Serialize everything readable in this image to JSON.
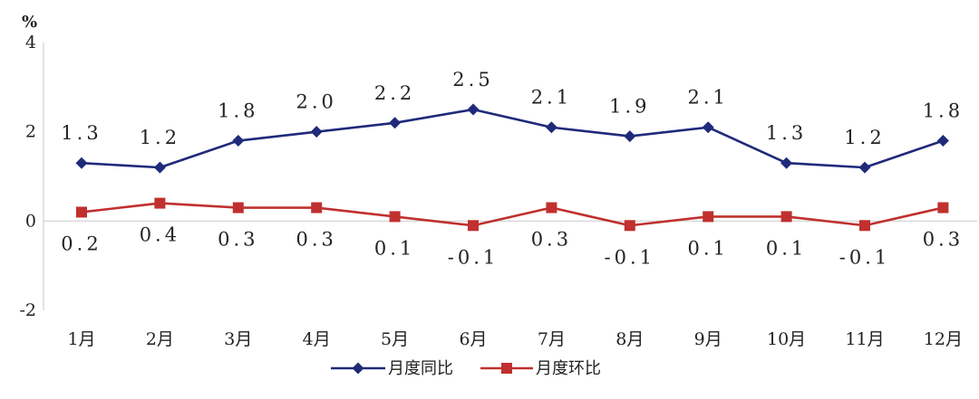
{
  "chart_data": {
    "type": "line",
    "title": "",
    "ylabel": "%",
    "xlabel": "",
    "ylim": [
      -2,
      4
    ],
    "yticks": [
      -2,
      0,
      2,
      4
    ],
    "ytick_labels": [
      "-2",
      "0",
      "2",
      "4"
    ],
    "categories": [
      "1月",
      "2月",
      "3月",
      "4月",
      "5月",
      "6月",
      "7月",
      "8月",
      "9月",
      "10月",
      "11月",
      "12月"
    ],
    "series": [
      {
        "name": "月度同比",
        "color": "#1f2a7a",
        "marker": "diamond",
        "values": [
          1.3,
          1.2,
          1.8,
          2.0,
          2.2,
          2.5,
          2.1,
          1.9,
          2.1,
          1.3,
          1.2,
          1.8
        ],
        "labels": [
          "1.3",
          "1.2",
          "1.8",
          "2.0",
          "2.2",
          "2.5",
          "2.1",
          "1.9",
          "2.1",
          "1.3",
          "1.2",
          "1.8"
        ],
        "label_position": "above"
      },
      {
        "name": "月度环比",
        "color": "#c0302e",
        "marker": "square",
        "values": [
          0.2,
          0.4,
          0.3,
          0.3,
          0.1,
          -0.1,
          0.3,
          -0.1,
          0.1,
          0.1,
          -0.1,
          0.3
        ],
        "labels": [
          "0.2",
          "0.4",
          "0.3",
          "0.3",
          "0.1",
          "-0.1",
          "0.3",
          "-0.1",
          "0.1",
          "0.1",
          "-0.1",
          "0.3"
        ],
        "label_position": "below"
      }
    ],
    "legend": "bottom-center",
    "grid": false
  }
}
